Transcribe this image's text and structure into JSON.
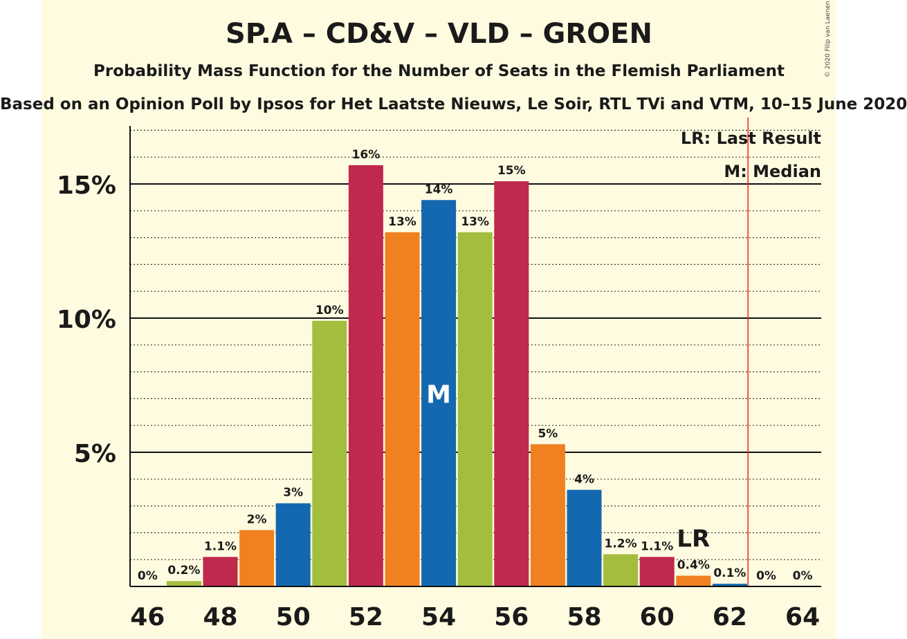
{
  "header": {
    "title": "SP.A – CD&V – VLD – GROEN",
    "subtitle": "Probability Mass Function for the Number of Seats in the Flemish Parliament",
    "subtitle2": "Based on an Opinion Poll by Ipsos for Het Laatste Nieuws, Le Soir, RTL TVi and VTM, 10–15 June 2020",
    "credit": "© 2020 Filip van Laenen"
  },
  "legend": {
    "last_result": "LR: Last Result",
    "median": "M: Median"
  },
  "chart_data": {
    "type": "bar",
    "x": [
      46,
      47,
      48,
      49,
      50,
      51,
      52,
      53,
      54,
      55,
      56,
      57,
      58,
      59,
      60,
      61,
      62,
      63,
      64
    ],
    "values": [
      0,
      0.2,
      1.1,
      2.1,
      3.1,
      9.9,
      15.7,
      13.2,
      14.4,
      13.2,
      15.1,
      5.3,
      3.6,
      1.2,
      1.1,
      0.4,
      0.1,
      0,
      0
    ],
    "data_labels": [
      "0%",
      "0.2%",
      "1.1%",
      "2%",
      "3%",
      "10%",
      "16%",
      "13%",
      "14%",
      "13%",
      "15%",
      "5%",
      "4%",
      "1.2%",
      "1.1%",
      "0.4%",
      "0.1%",
      "0%",
      "0%"
    ],
    "colors": [
      "#a3bd3e",
      "#a3bd3e",
      "#c0284e",
      "#f08020",
      "#1468b0",
      "#a3bd3e",
      "#c0284e",
      "#f08020",
      "#1468b0",
      "#a3bd3e",
      "#c0284e",
      "#f08020",
      "#1468b0",
      "#a3bd3e",
      "#c0284e",
      "#f08020",
      "#1468b0",
      "#a3bd3e",
      "#c0284e"
    ],
    "x_ticks": [
      46,
      48,
      50,
      52,
      54,
      56,
      58,
      60,
      62,
      64
    ],
    "y_ticks": [
      {
        "value": 5,
        "label": "5%"
      },
      {
        "value": 10,
        "label": "10%"
      },
      {
        "value": 15,
        "label": "15%"
      }
    ],
    "ylim": [
      0,
      17
    ],
    "minor_grid_step": 1,
    "median_seat": 54,
    "median_label": "M",
    "last_result_seat": 61,
    "last_result_label": "LR",
    "majority_line": 62.5,
    "majority_color": "#e8231d",
    "grid": true,
    "legend_placement": "top-right"
  }
}
